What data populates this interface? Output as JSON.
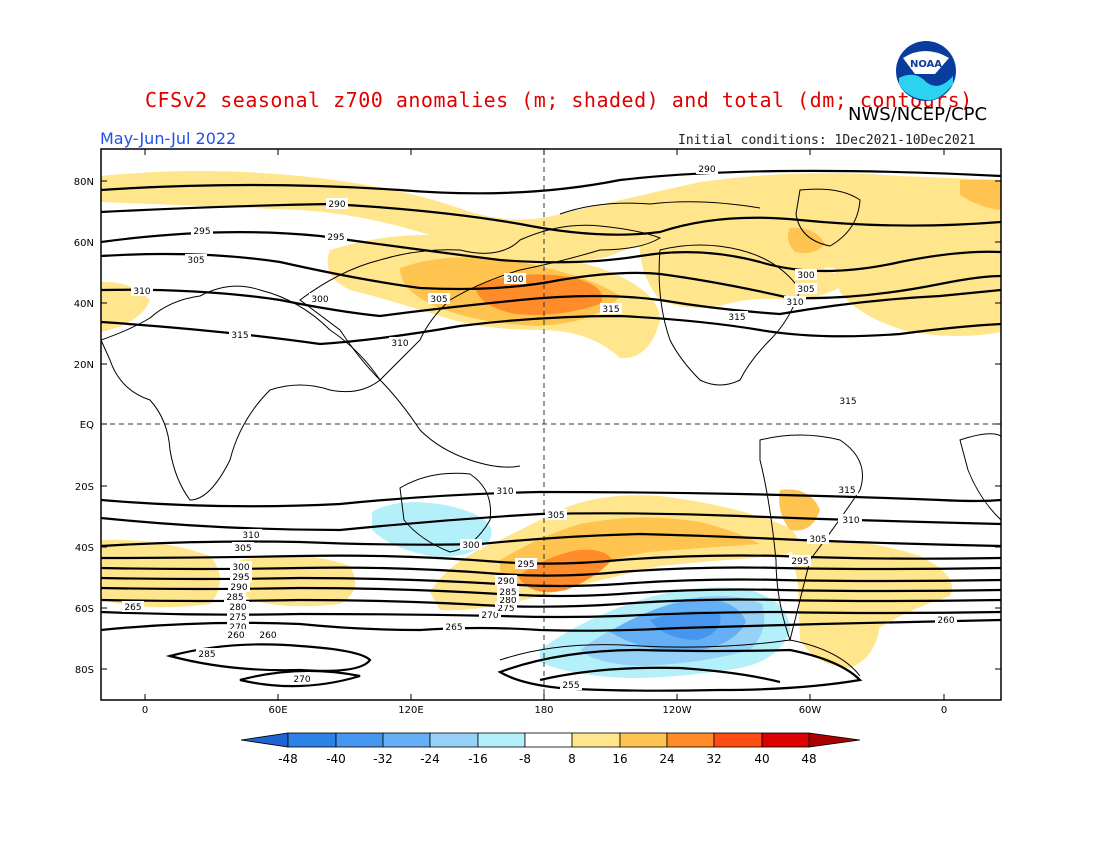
{
  "header": {
    "title": "CFSv2 seasonal z700 anomalies (m; shaded) and total (dm; contours)",
    "agency": "NWS/NCEP/CPC",
    "season": "May-Jun-Jul 2022",
    "initial_conditions": "Initial conditions: 1Dec2021-10Dec2021",
    "logo_text": "NOAA"
  },
  "map": {
    "lat_labels": [
      "80N",
      "60N",
      "40N",
      "20N",
      "EQ",
      "20S",
      "40S",
      "60S",
      "80S"
    ],
    "lon_labels": [
      "0",
      "60E",
      "120E",
      "180",
      "120W",
      "60W",
      "0"
    ],
    "contour_labels": [
      "290",
      "290",
      "295",
      "295",
      "300",
      "300",
      "300",
      "305",
      "305",
      "305",
      "310",
      "310",
      "310",
      "315",
      "315",
      "315",
      "315",
      "310",
      "305",
      "300",
      "295",
      "290",
      "285",
      "280",
      "275",
      "270",
      "265",
      "260",
      "255",
      "260",
      "265",
      "270",
      "275",
      "280",
      "285",
      "290",
      "295",
      "300",
      "305",
      "310",
      "315",
      "260",
      "265",
      "270",
      "285",
      "295",
      "305",
      "310"
    ]
  },
  "colorbar": {
    "labels": [
      "-48",
      "-40",
      "-32",
      "-24",
      "-16",
      "-8",
      "8",
      "16",
      "24",
      "32",
      "40",
      "48"
    ],
    "colors": [
      "#1e64d2",
      "#2d82e6",
      "#4696f0",
      "#64aff5",
      "#96d2f8",
      "#b4f0fa",
      "#ffffff",
      "#ffe68c",
      "#ffc350",
      "#ff8c28",
      "#ff4b14",
      "#dc0000",
      "#aa0000"
    ]
  }
}
